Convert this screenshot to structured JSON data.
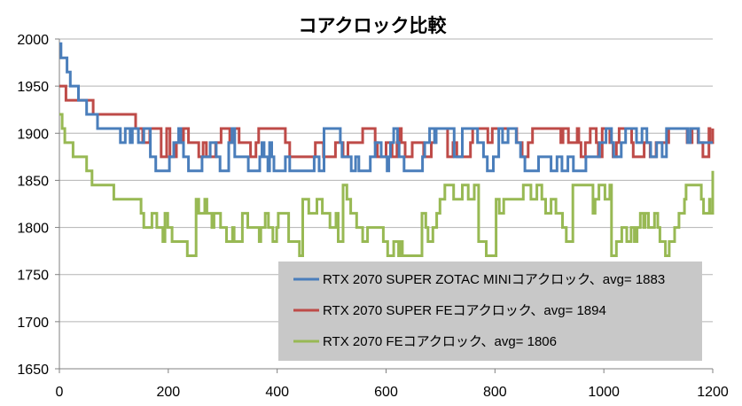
{
  "chart_data": {
    "type": "line",
    "title": "コアクロック比較",
    "xlabel": "",
    "ylabel": "",
    "xlim": [
      0,
      1200
    ],
    "ylim": [
      1650,
      2000
    ],
    "x_ticks": [
      0,
      200,
      400,
      600,
      800,
      1000,
      1200
    ],
    "y_ticks": [
      1650,
      1700,
      1750,
      1800,
      1850,
      1900,
      1950,
      2000
    ],
    "grid": "horizontal",
    "legend_position": "bottom-right inside plot",
    "series": [
      {
        "name": "RTX 2070 SUPER ZOTAC MINIコアクロック、avg= 1883",
        "color": "#4a7ebb",
        "start": 1995,
        "base": 1890,
        "levels": [
          1860,
          1875,
          1890,
          1905
        ],
        "warmup_points": [
          [
            0,
            1995
          ],
          [
            3,
            1980
          ],
          [
            10,
            1980
          ],
          [
            14,
            1965
          ],
          [
            20,
            1950
          ],
          [
            30,
            1950
          ],
          [
            35,
            1935
          ],
          [
            45,
            1935
          ],
          [
            50,
            1920
          ],
          [
            60,
            1920
          ],
          [
            70,
            1905
          ],
          [
            100,
            1905
          ]
        ],
        "final_value": 1890
      },
      {
        "name": "RTX 2070 SUPER FEコアクロック、avg= 1894",
        "color": "#be4b48",
        "start": 1950,
        "base": 1890,
        "levels": [
          1875,
          1890,
          1905
        ],
        "warmup_points": [
          [
            0,
            1950
          ],
          [
            10,
            1950
          ],
          [
            12,
            1935
          ],
          [
            60,
            1935
          ],
          [
            62,
            1920
          ],
          [
            100,
            1920
          ],
          [
            130,
            1920
          ],
          [
            140,
            1905
          ]
        ],
        "final_value": 1905
      },
      {
        "name": "RTX 2070 FEコアクロック、avg= 1806",
        "color": "#98b954",
        "start": 1920,
        "base": 1806,
        "levels": [
          1770,
          1785,
          1800,
          1815,
          1830,
          1845
        ],
        "warmup_points": [
          [
            0,
            1920
          ],
          [
            5,
            1905
          ],
          [
            10,
            1890
          ],
          [
            20,
            1890
          ],
          [
            25,
            1875
          ],
          [
            40,
            1875
          ],
          [
            50,
            1860
          ],
          [
            60,
            1845
          ],
          [
            80,
            1845
          ],
          [
            100,
            1830
          ],
          [
            140,
            1830
          ],
          [
            150,
            1815
          ]
        ],
        "final_value": 1860
      }
    ]
  }
}
